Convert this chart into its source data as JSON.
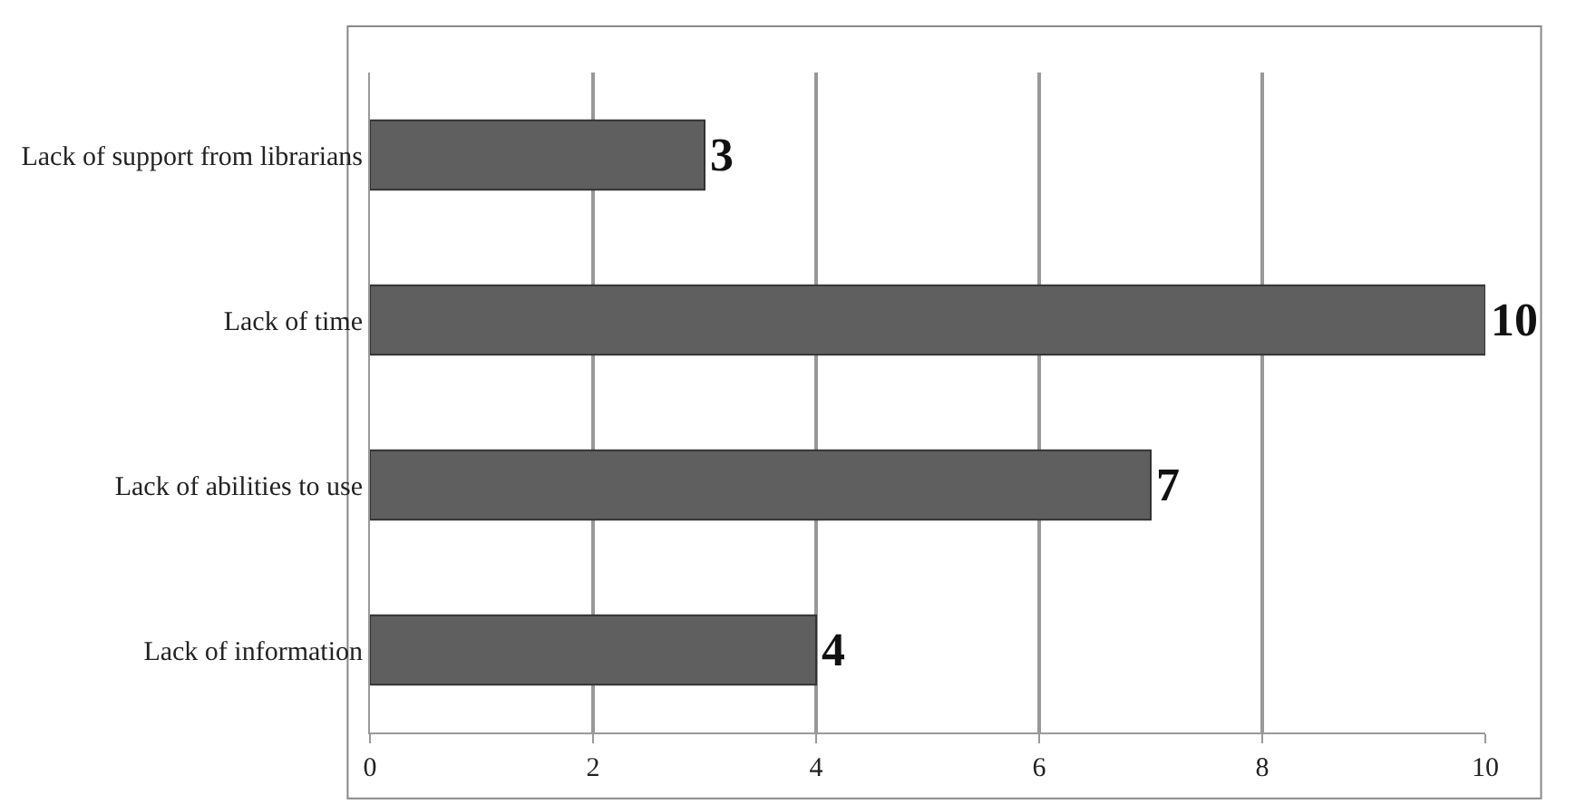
{
  "chart_data": {
    "type": "bar",
    "orientation": "horizontal",
    "categories": [
      "Lack of support from librarians",
      "Lack of time",
      "Lack of abilities to use",
      "Lack of information"
    ],
    "values": [
      3,
      10,
      7,
      4
    ],
    "color": "#5f5f5f",
    "xlim": [
      0,
      10
    ],
    "xticks": [
      0,
      2,
      4,
      6,
      8,
      10
    ],
    "grid": "x",
    "data_labels": true
  }
}
